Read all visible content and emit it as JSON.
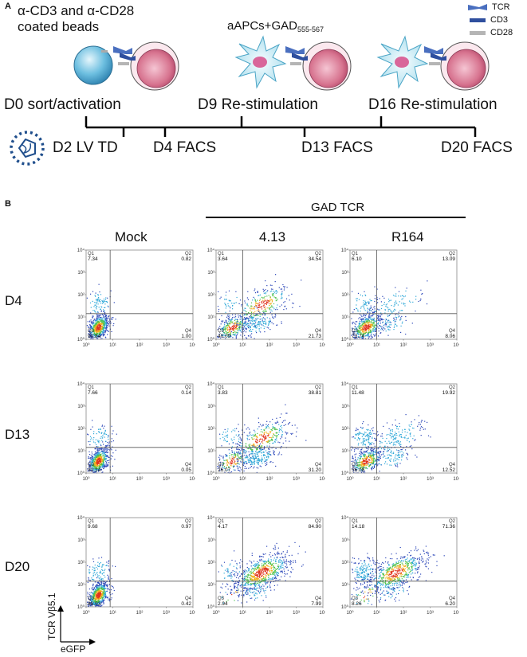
{
  "panel_a": {
    "label": "A",
    "beads_line1": "α-CD3 and α-CD28",
    "beads_line2": "coated beads",
    "aapc_main": "aAPCs+GAD",
    "aapc_sub": "555-567",
    "legend": [
      {
        "label": "TCR",
        "color": "#4a6fbf"
      },
      {
        "label": "CD3",
        "color": "#2f4f9e"
      },
      {
        "label": "CD28",
        "color": "#b5b5b5"
      }
    ],
    "top_steps": {
      "d0": "D0 sort/activation",
      "d9": "D9 Re-stimulation",
      "d16": "D16 Re-stimulation"
    },
    "bottom_steps": {
      "d2": "D2 LV TD",
      "d4": "D4 FACS",
      "d13": "D13 FACS",
      "d20": "D20 FACS"
    }
  },
  "panel_b": {
    "label": "B",
    "gad_header": "GAD TCR",
    "columns": [
      "Mock",
      "4.13",
      "R164"
    ],
    "rows": [
      "D4",
      "D13",
      "D20"
    ],
    "y_axis_label": "TCR Vβ5.1",
    "x_axis_label": "eGFP",
    "tick_labels": {
      "y": [
        "10⁰",
        "10¹",
        "10²",
        "10³",
        "10⁴"
      ],
      "x": [
        "10⁰",
        "10¹",
        "10²",
        "10³",
        "10⁴"
      ]
    },
    "quadrant_names": [
      "Q1",
      "Q2",
      "Q3",
      "Q4"
    ],
    "plots": [
      [
        {
          "q1": "7.34",
          "q2": "0.82",
          "q3": "90.84",
          "q4": "1.00"
        },
        {
          "q1": "3.64",
          "q2": "34.54",
          "q3": "40.09",
          "q4": "21.73"
        },
        {
          "q1": "6.10",
          "q2": "13.09",
          "q3": "72.74",
          "q4": "8.06"
        }
      ],
      [
        {
          "q1": "7.66",
          "q2": "0.14",
          "q3": "92.14",
          "q4": "0.05"
        },
        {
          "q1": "3.83",
          "q2": "38.81",
          "q3": "26.07",
          "q4": "31.20"
        },
        {
          "q1": "11.48",
          "q2": "19.92",
          "q3": "56.08",
          "q4": "12.52"
        }
      ],
      [
        {
          "q1": "9.68",
          "q2": "0.97",
          "q3": "88.93",
          "q4": "0.42"
        },
        {
          "q1": "4.17",
          "q2": "84.90",
          "q3": "2.94",
          "q4": "7.99"
        },
        {
          "q1": "14.18",
          "q2": "71.36",
          "q3": "8.26",
          "q4": "6.20"
        }
      ]
    ]
  }
}
